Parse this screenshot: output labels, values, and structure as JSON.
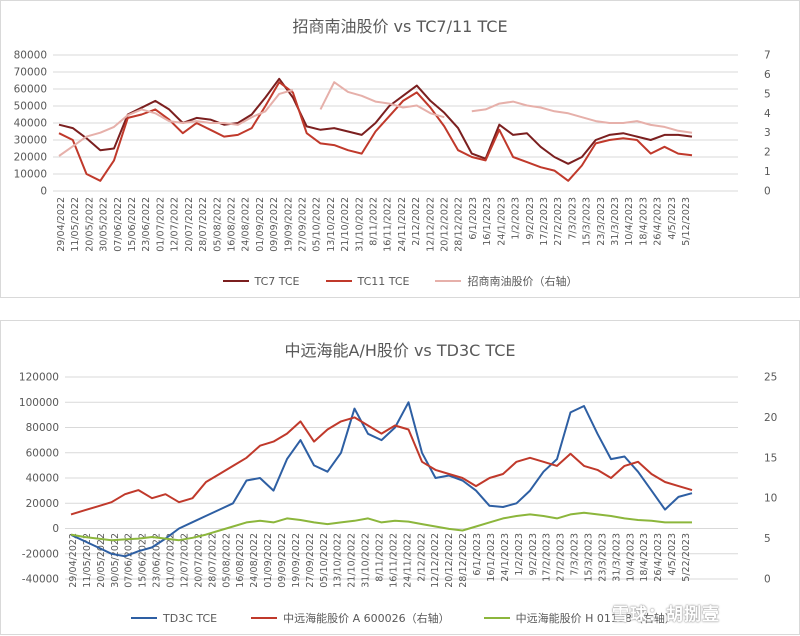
{
  "chart_data": [
    {
      "type": "line",
      "title": "招商南油股价 vs TC7/11 TCE",
      "y_left": {
        "ticks": [
          0,
          10000,
          20000,
          30000,
          40000,
          50000,
          60000,
          70000,
          80000
        ],
        "ylim": [
          0,
          80000
        ]
      },
      "y_right": {
        "ticks": [
          0,
          1,
          2,
          3,
          4,
          5,
          6,
          7
        ],
        "ylim": [
          0,
          7
        ]
      },
      "x_ticks": [
        "29/04/2022",
        "11/05/2022",
        "20/05/2022",
        "30/05/2022",
        "07/06/2022",
        "15/06/2022",
        "23/06/2022",
        "01/07/2022",
        "12/07/2022",
        "20/07/2022",
        "28/07/2022",
        "05/08/2022",
        "16/08/2022",
        "24/08/2022",
        "01/09/2022",
        "09/09/2022",
        "19/09/2022",
        "27/09/2022",
        "05/10/2022",
        "13/10/2022",
        "21/10/2022",
        "31/10/2022",
        "8/11/2022",
        "16/11/2022",
        "24/11/2022",
        "2/12/2022",
        "12/12/2022",
        "20/12/2022",
        "28/12/2022",
        "6/1/2023",
        "16/1/2023",
        "24/1/2023",
        "1/2/2023",
        "9/2/2023",
        "17/2/2023",
        "27/2/2023",
        "7/3/2023",
        "15/3/2023",
        "23/3/2023",
        "31/3/2023",
        "10/4/2023",
        "18/4/2023",
        "26/4/2023",
        "4/5/2023",
        "5/12/2023"
      ],
      "series": [
        {
          "name": "TC7 TCE",
          "axis": "left",
          "color": "#7b1f1f",
          "values": [
            39000,
            37000,
            31000,
            24000,
            25000,
            45000,
            49000,
            53000,
            48000,
            40000,
            43000,
            42000,
            39000,
            40000,
            45000,
            55000,
            66000,
            55000,
            38000,
            36000,
            37000,
            35000,
            33000,
            40000,
            50000,
            56000,
            62000,
            53000,
            46000,
            37000,
            22000,
            19000,
            39000,
            33000,
            34000,
            26000,
            20000,
            16000,
            20000,
            30000,
            33000,
            34000,
            32000,
            30000,
            33000,
            33000,
            32000
          ]
        },
        {
          "name": "TC11 TCE",
          "axis": "left",
          "color": "#c0392b",
          "values": [
            34000,
            30000,
            10000,
            6000,
            18000,
            43000,
            45000,
            48000,
            42000,
            34000,
            40000,
            36000,
            32000,
            33000,
            37000,
            50000,
            64000,
            58000,
            34000,
            28000,
            27000,
            24000,
            22000,
            35000,
            44000,
            53000,
            58000,
            49000,
            38000,
            24000,
            20000,
            18000,
            36000,
            20000,
            17000,
            14000,
            12000,
            6000,
            15000,
            28000,
            30000,
            31000,
            30000,
            22000,
            26000,
            22000,
            21000
          ]
        },
        {
          "name": "招商南油股价（右轴）",
          "axis": "right",
          "color": "#e6b0aa",
          "values": [
            1.8,
            2.3,
            2.8,
            3.0,
            3.3,
            3.9,
            4.2,
            4.0,
            3.6,
            3.5,
            3.6,
            3.5,
            3.5,
            3.4,
            3.8,
            4.1,
            5.0,
            5.2,
            null,
            4.2,
            5.6,
            5.1,
            4.9,
            4.6,
            4.5,
            4.3,
            4.4,
            4.0,
            3.8,
            null,
            4.1,
            4.2,
            4.5,
            4.6,
            4.4,
            4.3,
            4.1,
            4.0,
            3.8,
            3.6,
            3.5,
            3.5,
            3.6,
            3.4,
            3.3,
            3.1,
            3.0
          ]
        }
      ],
      "legend": "bottom"
    },
    {
      "type": "line",
      "title": "中远海能A/H股价 vs TD3C TCE",
      "y_left": {
        "ticks": [
          -40000,
          -20000,
          0,
          20000,
          40000,
          60000,
          80000,
          100000,
          120000
        ],
        "ylim": [
          -40000,
          120000
        ]
      },
      "y_right": {
        "ticks": [
          0,
          5,
          10,
          15,
          20,
          25
        ],
        "ylim": [
          0,
          25
        ]
      },
      "x_ticks": [
        "29/04/2022",
        "11/05/2022",
        "20/05/2022",
        "30/05/2022",
        "07/06/2022",
        "15/06/2022",
        "23/06/2022",
        "01/07/2022",
        "12/07/2022",
        "20/07/2022",
        "28/07/2022",
        "05/08/2022",
        "16/08/2022",
        "24/08/2022",
        "01/09/2022",
        "09/09/2022",
        "19/09/2022",
        "27/09/2022",
        "05/10/2022",
        "13/10/2022",
        "21/10/2022",
        "31/10/2022",
        "8/11/2022",
        "16/11/2022",
        "24/11/2022",
        "2/12/2022",
        "12/12/2022",
        "20/12/2022",
        "28/12/2022",
        "6/1/2023",
        "16/1/2023",
        "24/1/2023",
        "1/2/2023",
        "9/2/2023",
        "17/2/2023",
        "27/2/2023",
        "7/3/2023",
        "15/3/2023",
        "23/3/2023",
        "31/3/2023",
        "10/4/2023",
        "18/4/2023",
        "26/4/2023",
        "4/5/2023",
        "5/22/2023"
      ],
      "series": [
        {
          "name": "TD3C TCE",
          "axis": "left",
          "color": "#2e5fa3",
          "values": [
            -5000,
            -10000,
            -15000,
            -20000,
            -22000,
            -18000,
            -15000,
            -8000,
            0,
            5000,
            10000,
            15000,
            20000,
            38000,
            40000,
            30000,
            55000,
            70000,
            50000,
            45000,
            60000,
            95000,
            75000,
            70000,
            80000,
            100000,
            60000,
            40000,
            42000,
            38000,
            30000,
            18000,
            17000,
            20000,
            30000,
            45000,
            55000,
            92000,
            97000,
            75000,
            55000,
            57000,
            45000,
            30000,
            15000,
            25000,
            28000
          ]
        },
        {
          "name": "中远海能股价 A 600026（右轴）",
          "axis": "right",
          "color": "#c0392b",
          "values": [
            8.0,
            8.5,
            9.0,
            9.5,
            10.5,
            11.0,
            10.0,
            10.5,
            9.5,
            10.0,
            12.0,
            13.0,
            14.0,
            15.0,
            16.5,
            17.0,
            18.0,
            19.5,
            17.0,
            18.5,
            19.5,
            20.0,
            19.0,
            18.0,
            19.0,
            18.5,
            14.5,
            13.5,
            13.0,
            12.5,
            11.5,
            12.5,
            13.0,
            14.5,
            15.0,
            14.5,
            14.0,
            15.5,
            14.0,
            13.5,
            12.5,
            14.0,
            14.5,
            13.0,
            12.0,
            11.5,
            11.0
          ]
        },
        {
          "name": "中远海能股价 H 01138（右轴）",
          "axis": "right",
          "color": "#8cb63c",
          "values": [
            5.5,
            5.2,
            5.0,
            4.8,
            4.9,
            5.0,
            5.2,
            5.0,
            4.8,
            5.1,
            5.5,
            6.0,
            6.5,
            7.0,
            7.2,
            7.0,
            7.5,
            7.3,
            7.0,
            6.8,
            7.0,
            7.2,
            7.5,
            7.0,
            7.2,
            7.1,
            6.8,
            6.5,
            6.2,
            6.0,
            6.5,
            7.0,
            7.5,
            7.8,
            8.0,
            7.8,
            7.5,
            8.0,
            8.2,
            8.0,
            7.8,
            7.5,
            7.3,
            7.2,
            7.0,
            7.0,
            7.0
          ]
        }
      ],
      "legend": "bottom"
    }
  ],
  "watermark": "雪球：胡捌壹"
}
